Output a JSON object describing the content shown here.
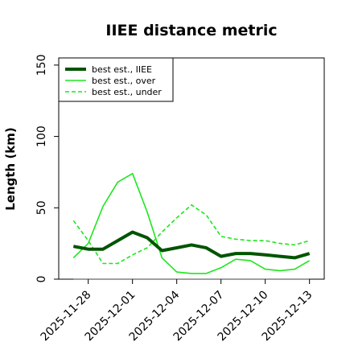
{
  "chart_data": {
    "type": "line",
    "title": "IIEE distance metric",
    "xlabel": "",
    "ylabel": "Length (km)",
    "xlim": [
      "2025-11-26",
      "2025-12-14"
    ],
    "ylim": [
      0,
      155
    ],
    "x_ticks": [
      "2025-11-28",
      "2025-12-01",
      "2025-12-04",
      "2025-12-07",
      "2025-12-10",
      "2025-12-13"
    ],
    "y_ticks": [
      0,
      50,
      100,
      150
    ],
    "grid": false,
    "legend_position": "top-left",
    "x": [
      "2025-11-27",
      "2025-11-28",
      "2025-11-29",
      "2025-11-30",
      "2025-12-01",
      "2025-12-02",
      "2025-12-03",
      "2025-12-04",
      "2025-12-05",
      "2025-12-06",
      "2025-12-07",
      "2025-12-08",
      "2025-12-09",
      "2025-12-10",
      "2025-12-11",
      "2025-12-12",
      "2025-12-13"
    ],
    "series": [
      {
        "name": "best est., IIEE",
        "color": "#005400",
        "style": "solid-thick",
        "values": [
          23,
          21,
          21,
          27,
          33,
          29,
          20,
          22,
          24,
          22,
          16,
          18,
          18,
          17,
          16,
          15,
          18
        ]
      },
      {
        "name": "best est., over",
        "color": "#1ee61e",
        "style": "solid",
        "values": [
          15,
          25,
          51,
          68,
          74,
          47,
          15,
          5,
          4,
          4,
          8,
          14,
          13,
          7,
          6,
          7,
          13
        ]
      },
      {
        "name": "best est., under",
        "color": "#1ee61e",
        "style": "dashed",
        "values": [
          41,
          27,
          11,
          11,
          17,
          22,
          33,
          43,
          52,
          45,
          30,
          28,
          27,
          27,
          25,
          24,
          27
        ]
      }
    ],
    "baseline": {
      "value": 0,
      "color": "#808080"
    }
  }
}
